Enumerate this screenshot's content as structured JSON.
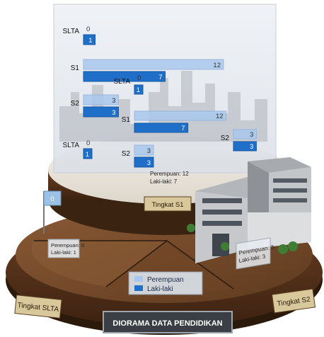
{
  "title": "DIORAMA DATA PENDIDIKAN",
  "legend": {
    "perempuan": "Perempuan",
    "laki": "Laki-laki"
  },
  "colors": {
    "perempuan": "#a9c8ee",
    "laki": "#1f6fc9",
    "wood": "#7a4a2a",
    "plate": "#e9e2d6"
  },
  "chart_data": [
    {
      "type": "bar",
      "orientation": "horizontal",
      "name": "upper-left panel",
      "categories": [
        "SLTA",
        "S1",
        "S2"
      ],
      "series": [
        {
          "name": "Perempuan",
          "values": [
            0,
            12,
            3
          ]
        },
        {
          "name": "Laki-laki",
          "values": [
            1,
            7,
            3
          ]
        }
      ]
    },
    {
      "type": "bar",
      "orientation": "horizontal",
      "name": "right panel",
      "categories": [
        "SLTA",
        "S1",
        "S2"
      ],
      "series": [
        {
          "name": "Perempuan",
          "values": [
            0,
            12,
            3
          ]
        },
        {
          "name": "Laki-laki",
          "values": [
            1,
            7,
            3
          ]
        }
      ]
    },
    {
      "type": "bar",
      "orientation": "horizontal",
      "name": "lower-left panel",
      "categories": [
        "SLTA",
        "S2"
      ],
      "series": [
        {
          "name": "Perempuan",
          "values": [
            0,
            3
          ]
        },
        {
          "name": "Laki-laki",
          "values": [
            1,
            3
          ]
        }
      ]
    }
  ],
  "plaques": {
    "s1": "Tingkat S1",
    "slta": "Tingkat SLTA",
    "s2": "Tingkat S2"
  },
  "flag_value": "0",
  "notes": {
    "s1": {
      "p": "Perempuan: 12",
      "l": "Laki-laki: 7"
    },
    "slta": {
      "p": "Perempuan: 0",
      "l": "Laki-laki: 1"
    },
    "s2": {
      "p": "Perempuan: 3",
      "l": "Laki-laki: 3"
    }
  }
}
